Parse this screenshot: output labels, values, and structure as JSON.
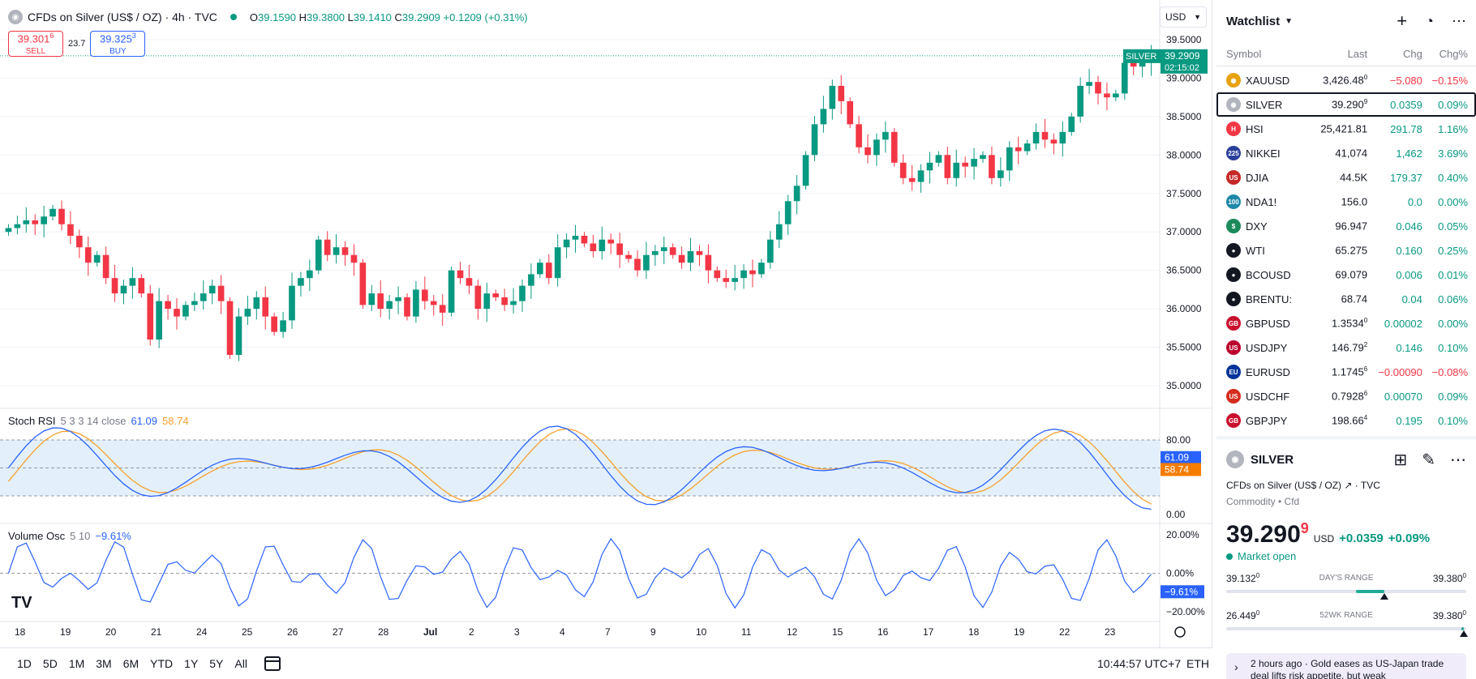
{
  "legend": {
    "symbol_name": "CFDs on Silver (US$ / OZ) · 4h · TVC",
    "open_label": "O",
    "open": "39.1590",
    "high_label": "H",
    "high": "39.3800",
    "low_label": "L",
    "low": "39.1410",
    "close_label": "C",
    "close": "39.2909",
    "change": "+0.1209 (+0.31%)"
  },
  "trade": {
    "sell_price": "39.301",
    "sell_sup": "6",
    "sell_label": "SELL",
    "spread": "23.7",
    "buy_price": "39.325",
    "buy_sup": "3",
    "buy_label": "BUY"
  },
  "currency": "USD",
  "price_axis": [
    "39.5000",
    "39.0000",
    "38.5000",
    "38.0000",
    "37.5000",
    "37.0000",
    "36.5000",
    "36.0000",
    "35.5000",
    "35.0000"
  ],
  "last_price_tag": {
    "symbol": "SILVER",
    "price": "39.2909",
    "countdown": "02:15:02"
  },
  "stoch": {
    "name": "Stoch RSI",
    "params": "5 3 3 14 close",
    "k": "61.09",
    "d": "58.74",
    "levels": [
      "80.00",
      "0.00"
    ]
  },
  "vol": {
    "name": "Volume Osc",
    "params": "5 10",
    "value": "−9.61%",
    "levels": [
      "20.00%",
      "0.00%",
      "−20.00%"
    ]
  },
  "time_axis": [
    "18",
    "19",
    "20",
    "21",
    "24",
    "25",
    "26",
    "27",
    "28",
    "Jul",
    "2",
    "3",
    "4",
    "7",
    "9",
    "10",
    "11",
    "12",
    "15",
    "16",
    "17",
    "18",
    "19",
    "22",
    "23"
  ],
  "ranges": [
    "1D",
    "5D",
    "1M",
    "3M",
    "6M",
    "YTD",
    "1Y",
    "5Y",
    "All"
  ],
  "clock": "10:44:57 UTC+7",
  "session": "ETH",
  "chart_data": {
    "type": "candlestick",
    "title": "CFDs on Silver (US$ / OZ) · 4h · TVC",
    "ylim": [
      34.8,
      39.7
    ],
    "closes": [
      37.05,
      37.1,
      37.15,
      37.1,
      37.2,
      37.3,
      37.1,
      36.95,
      36.8,
      36.6,
      36.7,
      36.4,
      36.2,
      36.3,
      36.4,
      36.2,
      35.6,
      36.1,
      36.0,
      35.9,
      36.05,
      36.1,
      36.2,
      36.3,
      36.1,
      35.4,
      35.9,
      36.0,
      36.15,
      35.9,
      35.7,
      35.85,
      36.3,
      36.4,
      36.5,
      36.9,
      36.7,
      36.8,
      36.7,
      36.6,
      36.05,
      36.2,
      36.0,
      36.1,
      36.15,
      35.9,
      36.25,
      36.1,
      36.05,
      35.95,
      36.5,
      36.4,
      36.3,
      36.0,
      36.2,
      36.15,
      36.05,
      36.1,
      36.3,
      36.45,
      36.6,
      36.4,
      36.8,
      36.9,
      36.95,
      36.85,
      36.75,
      36.9,
      36.85,
      36.7,
      36.65,
      36.5,
      36.7,
      36.75,
      36.8,
      36.7,
      36.6,
      36.75,
      36.7,
      36.5,
      36.4,
      36.35,
      36.4,
      36.5,
      36.45,
      36.6,
      36.9,
      37.1,
      37.4,
      37.6,
      38.0,
      38.4,
      38.6,
      38.9,
      38.7,
      38.4,
      38.1,
      38.0,
      38.2,
      38.3,
      37.9,
      37.7,
      37.65,
      37.8,
      37.9,
      38.0,
      37.7,
      37.9,
      37.85,
      37.95,
      38.0,
      37.7,
      37.8,
      38.1,
      38.05,
      38.15,
      38.3,
      38.2,
      38.15,
      38.3,
      38.5,
      38.9,
      38.95,
      38.8,
      38.75,
      38.8,
      39.2,
      39.15,
      39.2,
      39.2909
    ]
  },
  "watchlist": {
    "title": "Watchlist",
    "columns": [
      "Symbol",
      "Last",
      "Chg",
      "Chg%"
    ],
    "rows": [
      {
        "sym": "XAUUSD",
        "last": "3,426.48",
        "sup": "0",
        "chg": "−5.080",
        "chgp": "−0.15%",
        "dir": "neg",
        "icon_color": "#e8a20c",
        "icon": "◉"
      },
      {
        "sym": "SILVER",
        "last": "39.290",
        "sup": "9",
        "chg": "0.0359",
        "chgp": "0.09%",
        "dir": "pos",
        "icon_color": "#b2b5be",
        "icon": "◉",
        "sel": true
      },
      {
        "sym": "HSI",
        "last": "25,421.81",
        "sup": "",
        "chg": "291.78",
        "chgp": "1.16%",
        "dir": "pos",
        "icon_color": "#f23645",
        "icon": "H"
      },
      {
        "sym": "NIKKEI",
        "last": "41,074",
        "sup": "",
        "chg": "1,462",
        "chgp": "3.69%",
        "dir": "pos",
        "icon_color": "#2a3f9a",
        "icon": "225"
      },
      {
        "sym": "DJIA",
        "last": "44.5K",
        "sup": "",
        "chg": "179.37",
        "chgp": "0.40%",
        "dir": "pos",
        "icon_color": "#c62828",
        "icon": "US"
      },
      {
        "sym": "NDA1!",
        "last": "156.0",
        "sup": "",
        "chg": "0.0",
        "chgp": "0.00%",
        "dir": "pos",
        "icon_color": "#1e88a8",
        "icon": "100"
      },
      {
        "sym": "DXY",
        "last": "96.947",
        "sup": "",
        "chg": "0.046",
        "chgp": "0.05%",
        "dir": "pos",
        "icon_color": "#1b8a5a",
        "icon": "$"
      },
      {
        "sym": "WTI",
        "last": "65.275",
        "sup": "",
        "chg": "0.160",
        "chgp": "0.25%",
        "dir": "pos",
        "icon_color": "#131722",
        "icon": "●"
      },
      {
        "sym": "BCOUSD",
        "last": "69.079",
        "sup": "",
        "chg": "0.006",
        "chgp": "0.01%",
        "dir": "pos",
        "icon_color": "#131722",
        "icon": "●"
      },
      {
        "sym": "BRENTU:",
        "last": "68.74",
        "sup": "",
        "chg": "0.04",
        "chgp": "0.06%",
        "dir": "pos",
        "icon_color": "#131722",
        "icon": "●"
      },
      {
        "sym": "GBPUSD",
        "last": "1.3534",
        "sup": "0",
        "chg": "0.00002",
        "chgp": "0.00%",
        "dir": "pos",
        "icon_color": "#c8102e",
        "icon": "GB"
      },
      {
        "sym": "USDJPY",
        "last": "146.79",
        "sup": "2",
        "chg": "0.146",
        "chgp": "0.10%",
        "dir": "pos",
        "icon_color": "#bc002d",
        "icon": "US"
      },
      {
        "sym": "EURUSD",
        "last": "1.1745",
        "sup": "6",
        "chg": "−0.00090",
        "chgp": "−0.08%",
        "dir": "neg",
        "icon_color": "#003399",
        "icon": "EU"
      },
      {
        "sym": "USDCHF",
        "last": "0.7928",
        "sup": "6",
        "chg": "0.00070",
        "chgp": "0.09%",
        "dir": "pos",
        "icon_color": "#d52b1e",
        "icon": "US"
      },
      {
        "sym": "GBPJPY",
        "last": "198.66",
        "sup": "4",
        "chg": "0.195",
        "chgp": "0.10%",
        "dir": "pos",
        "icon_color": "#c8102e",
        "icon": "GB"
      }
    ]
  },
  "details": {
    "symbol": "SILVER",
    "description": "CFDs on Silver (US$ / OZ)",
    "exchange": "TVC",
    "type": "Commodity • Cfd",
    "price": "39.290",
    "price_sup": "9",
    "currency": "USD",
    "change": "+0.0359",
    "change_pct": "+0.09%",
    "status": "Market open",
    "day_range": {
      "low": "39.132",
      "low_sup": "0",
      "high": "39.380",
      "high_sup": "0",
      "label": "DAY'S RANGE",
      "position": 0.66
    },
    "wk52_range": {
      "low": "26.449",
      "low_sup": "0",
      "high": "39.380",
      "high_sup": "0",
      "label": "52WK RANGE",
      "position": 0.99
    }
  },
  "news": {
    "time": "2 hours ago",
    "text": "Gold eases as US-Japan trade deal lifts risk appetite, but weak"
  }
}
